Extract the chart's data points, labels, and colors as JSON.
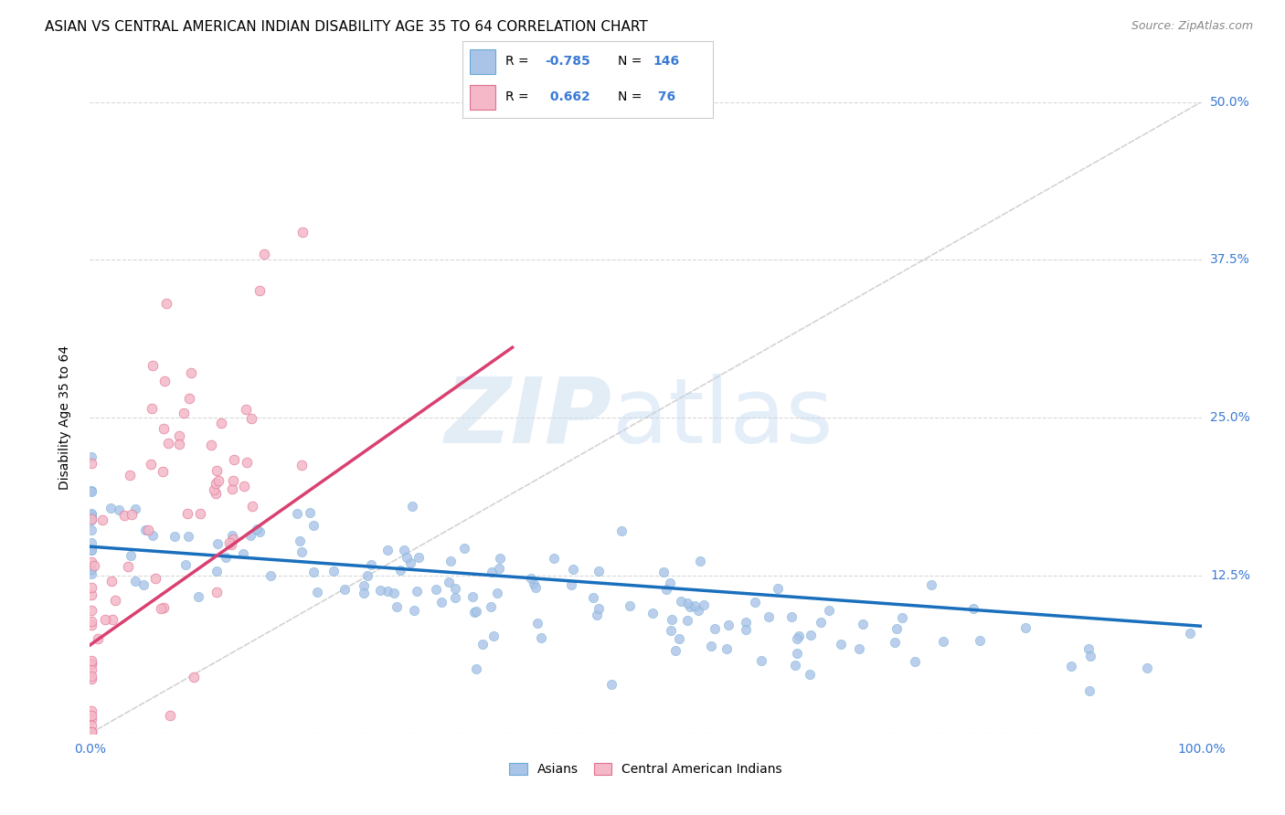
{
  "title": "ASIAN VS CENTRAL AMERICAN INDIAN DISABILITY AGE 35 TO 64 CORRELATION CHART",
  "source": "Source: ZipAtlas.com",
  "ylabel": "Disability Age 35 to 64",
  "xlim": [
    0.0,
    1.0
  ],
  "ylim": [
    0.0,
    0.5
  ],
  "yticks": [
    0.0,
    0.125,
    0.25,
    0.375,
    0.5
  ],
  "ytick_labels": [
    "",
    "12.5%",
    "25.0%",
    "37.5%",
    "50.0%"
  ],
  "asian_color": "#aac4e8",
  "asian_edge_color": "#6aaad4",
  "asian_line_color": "#1a6fbd",
  "ca_indian_color": "#f4b8c8",
  "ca_indian_edge_color": "#e07090",
  "ca_indian_line_color": "#d94070",
  "diag_color": "#c8c8c8",
  "tick_color": "#3a7ad5",
  "grid_color": "#d8d8d8",
  "background_color": "#ffffff",
  "asian_slope": -0.063,
  "asian_intercept": 0.148,
  "ca_slope": 0.62,
  "ca_intercept": 0.07,
  "title_fontsize": 11,
  "label_fontsize": 10,
  "tick_fontsize": 10,
  "source_fontsize": 9
}
